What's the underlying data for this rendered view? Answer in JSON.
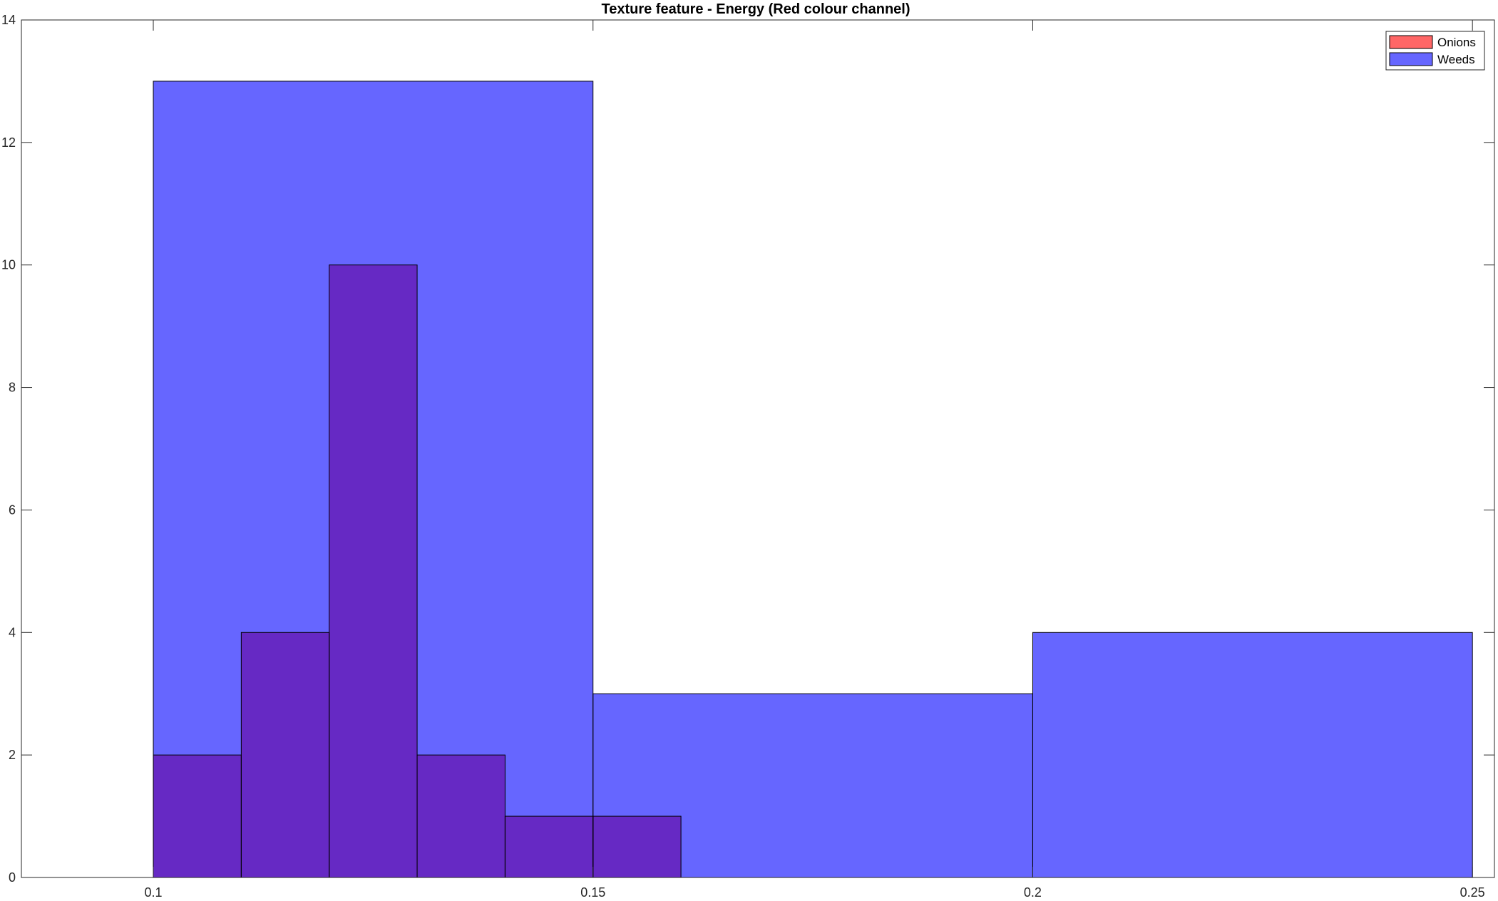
{
  "chart_data": {
    "type": "bar",
    "title": "Texture feature - Energy (Red colour channel)",
    "xlabel": "",
    "ylabel": "",
    "xlim": [
      0.085,
      0.2525
    ],
    "ylim": [
      0,
      14
    ],
    "x_ticks": [
      0.1,
      0.15,
      0.2,
      0.25
    ],
    "x_tick_labels": [
      "0.1",
      "0.15",
      "0.2",
      "0.25"
    ],
    "y_ticks": [
      0,
      2,
      4,
      6,
      8,
      10,
      12,
      14
    ],
    "y_tick_labels": [
      "0",
      "2",
      "4",
      "6",
      "8",
      "10",
      "12",
      "14"
    ],
    "grid": false,
    "legend_position": "top-right",
    "overlap_color": "#6629c4",
    "series": [
      {
        "name": "Onions",
        "color": "#ff6666",
        "bins": [
          {
            "x0": 0.1,
            "x1": 0.11,
            "count": 2
          },
          {
            "x0": 0.11,
            "x1": 0.12,
            "count": 4
          },
          {
            "x0": 0.12,
            "x1": 0.13,
            "count": 10
          },
          {
            "x0": 0.13,
            "x1": 0.14,
            "count": 2
          },
          {
            "x0": 0.14,
            "x1": 0.15,
            "count": 1
          },
          {
            "x0": 0.15,
            "x1": 0.16,
            "count": 1
          }
        ]
      },
      {
        "name": "Weeds",
        "color": "#6666ff",
        "bins": [
          {
            "x0": 0.1,
            "x1": 0.15,
            "count": 13
          },
          {
            "x0": 0.15,
            "x1": 0.2,
            "count": 3
          },
          {
            "x0": 0.2,
            "x1": 0.25,
            "count": 4
          }
        ]
      }
    ]
  }
}
